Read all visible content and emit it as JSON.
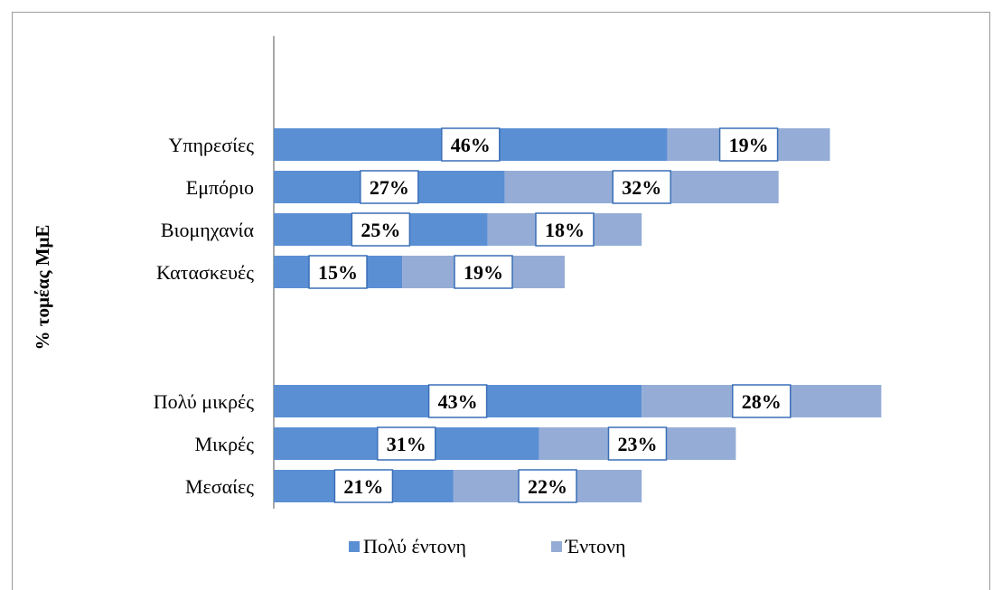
{
  "chart_data": {
    "type": "bar",
    "orientation": "horizontal",
    "stacked": true,
    "ylabel": "% τομέας ΜμΕ",
    "xlabel": "",
    "groups": [
      {
        "categories": [
          "Υπηρεσίες",
          "Εμπόριο",
          "Βιομηχανία",
          "Κατασκευές"
        ],
        "series": [
          {
            "name": "Πολύ έντονη",
            "values": [
              46,
              27,
              25,
              15
            ]
          },
          {
            "name": "Έντονη",
            "values": [
              19,
              32,
              18,
              19
            ]
          }
        ]
      },
      {
        "categories": [
          "Πολύ μικρές",
          "Μικρές",
          "Μεσαίες"
        ],
        "series": [
          {
            "name": "Πολύ έντονη",
            "values": [
              43,
              31,
              21
            ]
          },
          {
            "name": "Έντονη",
            "values": [
              28,
              23,
              22
            ]
          }
        ]
      }
    ],
    "value_suffix": "%",
    "legend_position": "bottom",
    "grid": false,
    "colors": {
      "Πολύ έντονη": "#5b8fd4",
      "Έντονη": "#95add6"
    }
  }
}
